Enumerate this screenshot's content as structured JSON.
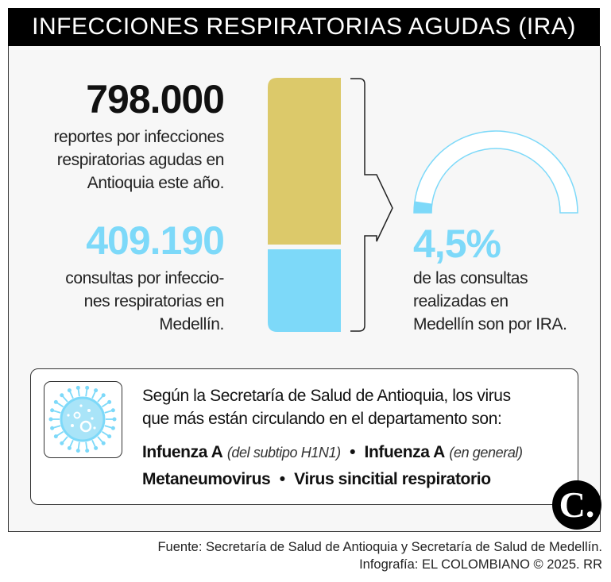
{
  "header": {
    "title": "INFECCIONES RESPIRATORIAS AGUDAS (IRA)"
  },
  "stat_antioquia": {
    "value": "798.000",
    "description": [
      "reportes por infecciones",
      "respiratorias agudas en",
      "Antioquia este año."
    ]
  },
  "stat_medellin": {
    "value": "409.190",
    "description": [
      "consultas por infeccio-",
      "nes respiratorias en",
      "Medellín."
    ]
  },
  "stat_percent": {
    "value": "4,5%",
    "fraction": 0.045,
    "description": [
      "de las consultas",
      "realizadas en",
      "Medellín son por IRA."
    ]
  },
  "colors": {
    "gold": "#dcc96a",
    "blue": "#7dd9f9",
    "black": "#000000"
  },
  "virus_info": {
    "intro": [
      "Según la Secretaría de Salud de Antioquia, los virus",
      "que más están circulando en el departamento son:"
    ],
    "viruses": [
      {
        "name": "Infuenza A",
        "note": "(del subtipo H1N1)"
      },
      {
        "name": "Infuenza A",
        "note": "(en general)"
      },
      {
        "name": "Metaneumovirus"
      },
      {
        "name": "Virus sincitial respiratorio"
      }
    ],
    "separator": "•",
    "icon": "virus-icon"
  },
  "logo": {
    "text": "C."
  },
  "footer": {
    "source": "Fuente: Secretaría de Salud de Antioquia y Secretaría de Salud de Medellín.",
    "credit": "Infografía: EL COLOMBIANO © 2025. RR"
  }
}
